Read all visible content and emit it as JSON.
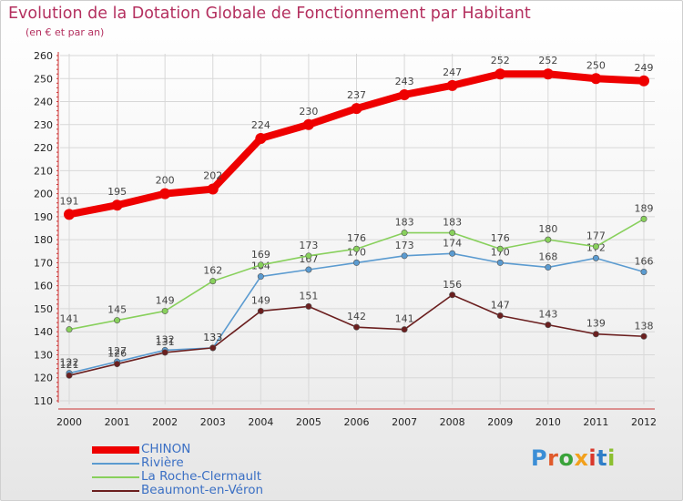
{
  "title": "Evolution de la Dotation Globale de Fonctionnement par Habitant",
  "subtitle": "(en € et par an)",
  "logo": {
    "text": "Proxiti",
    "letter_colors": [
      "#3b8ed6",
      "#e05a2b",
      "#3aa33a",
      "#f2a01c",
      "#d9382c",
      "#2f7ec8",
      "#8bbf2f"
    ]
  },
  "chart_data": {
    "type": "line",
    "title": "Evolution de la Dotation Globale de Fonctionnement par Habitant",
    "subtitle": "(en € et par an)",
    "x": [
      2000,
      2001,
      2002,
      2003,
      2004,
      2005,
      2006,
      2007,
      2008,
      2009,
      2010,
      2011,
      2012
    ],
    "ylim": [
      110,
      260
    ],
    "yticks": [
      110,
      120,
      130,
      140,
      150,
      160,
      170,
      180,
      190,
      200,
      210,
      220,
      230,
      240,
      250,
      260
    ],
    "grid": true,
    "legend_position": "bottom-left",
    "series": [
      {
        "name": "CHINON",
        "color": "#ee0000",
        "emphasis": true,
        "values": [
          191,
          195,
          200,
          202,
          224,
          230,
          237,
          243,
          247,
          252,
          252,
          250,
          249
        ]
      },
      {
        "name": "Rivière",
        "color": "#5b9bd0",
        "emphasis": false,
        "values": [
          122,
          127,
          132,
          133,
          164,
          167,
          170,
          173,
          174,
          170,
          168,
          172,
          166
        ]
      },
      {
        "name": "La Roche-Clermault",
        "color": "#88d05c",
        "emphasis": false,
        "values": [
          141,
          145,
          149,
          162,
          169,
          173,
          176,
          183,
          183,
          176,
          180,
          177,
          189
        ]
      },
      {
        "name": "Beaumont-en-Véron",
        "color": "#6b1f1f",
        "emphasis": false,
        "values": [
          121,
          126,
          131,
          133,
          149,
          151,
          142,
          141,
          156,
          147,
          143,
          139,
          138
        ]
      }
    ]
  }
}
